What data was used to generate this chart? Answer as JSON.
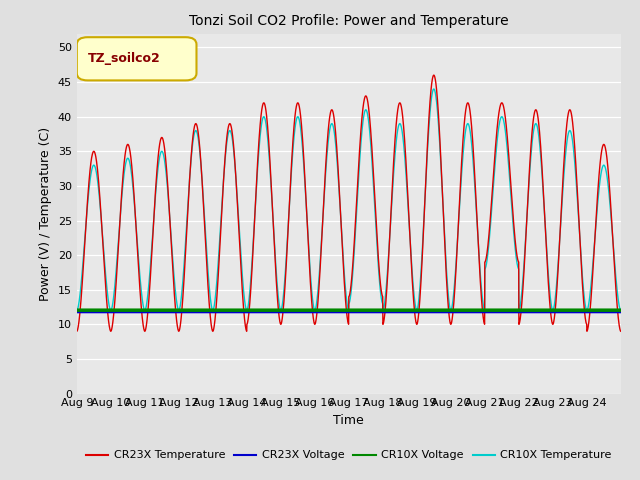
{
  "title": "Tonzi Soil CO2 Profile: Power and Temperature",
  "xlabel": "Time",
  "ylabel": "Power (V) / Temperature (C)",
  "ylim": [
    0,
    52
  ],
  "yticks": [
    0,
    5,
    10,
    15,
    20,
    25,
    30,
    35,
    40,
    45,
    50
  ],
  "x_labels": [
    "Aug 9",
    "Aug 10",
    "Aug 11",
    "Aug 12",
    "Aug 13",
    "Aug 14",
    "Aug 15",
    "Aug 16",
    "Aug 17",
    "Aug 18",
    "Aug 19",
    "Aug 20",
    "Aug 21",
    "Aug 22",
    "Aug 23",
    "Aug 24"
  ],
  "bg_color": "#e0e0e0",
  "plot_bg_color": "#e8e8e8",
  "cr23x_temp_color": "#dd0000",
  "cr23x_volt_color": "#0000cc",
  "cr10x_volt_color": "#008800",
  "cr10x_temp_color": "#00cccc",
  "cr10x_volt_value": 12.05,
  "cr23x_volt_value": 11.85,
  "legend_box_facecolor": "#ffffcc",
  "legend_box_edgecolor": "#ccaa00",
  "legend_box_text": "TZ_soilco2",
  "legend_box_text_color": "#880000",
  "num_days": 16,
  "cr23x_peaks": [
    35,
    36,
    37,
    39,
    39,
    42,
    42,
    41,
    43,
    42,
    46,
    42,
    42,
    41,
    41,
    36
  ],
  "cr23x_mins": [
    9,
    9,
    9,
    9,
    9,
    10,
    10,
    10,
    14,
    10,
    10,
    10,
    19,
    10,
    10,
    9
  ],
  "cr10x_peaks": [
    33,
    34,
    35,
    38,
    38,
    40,
    40,
    39,
    41,
    39,
    44,
    39,
    40,
    39,
    38,
    33
  ],
  "cr10x_mins": [
    12,
    12,
    12,
    12,
    12,
    12,
    12,
    12,
    13,
    12,
    12,
    12,
    18,
    12,
    12,
    12
  ]
}
